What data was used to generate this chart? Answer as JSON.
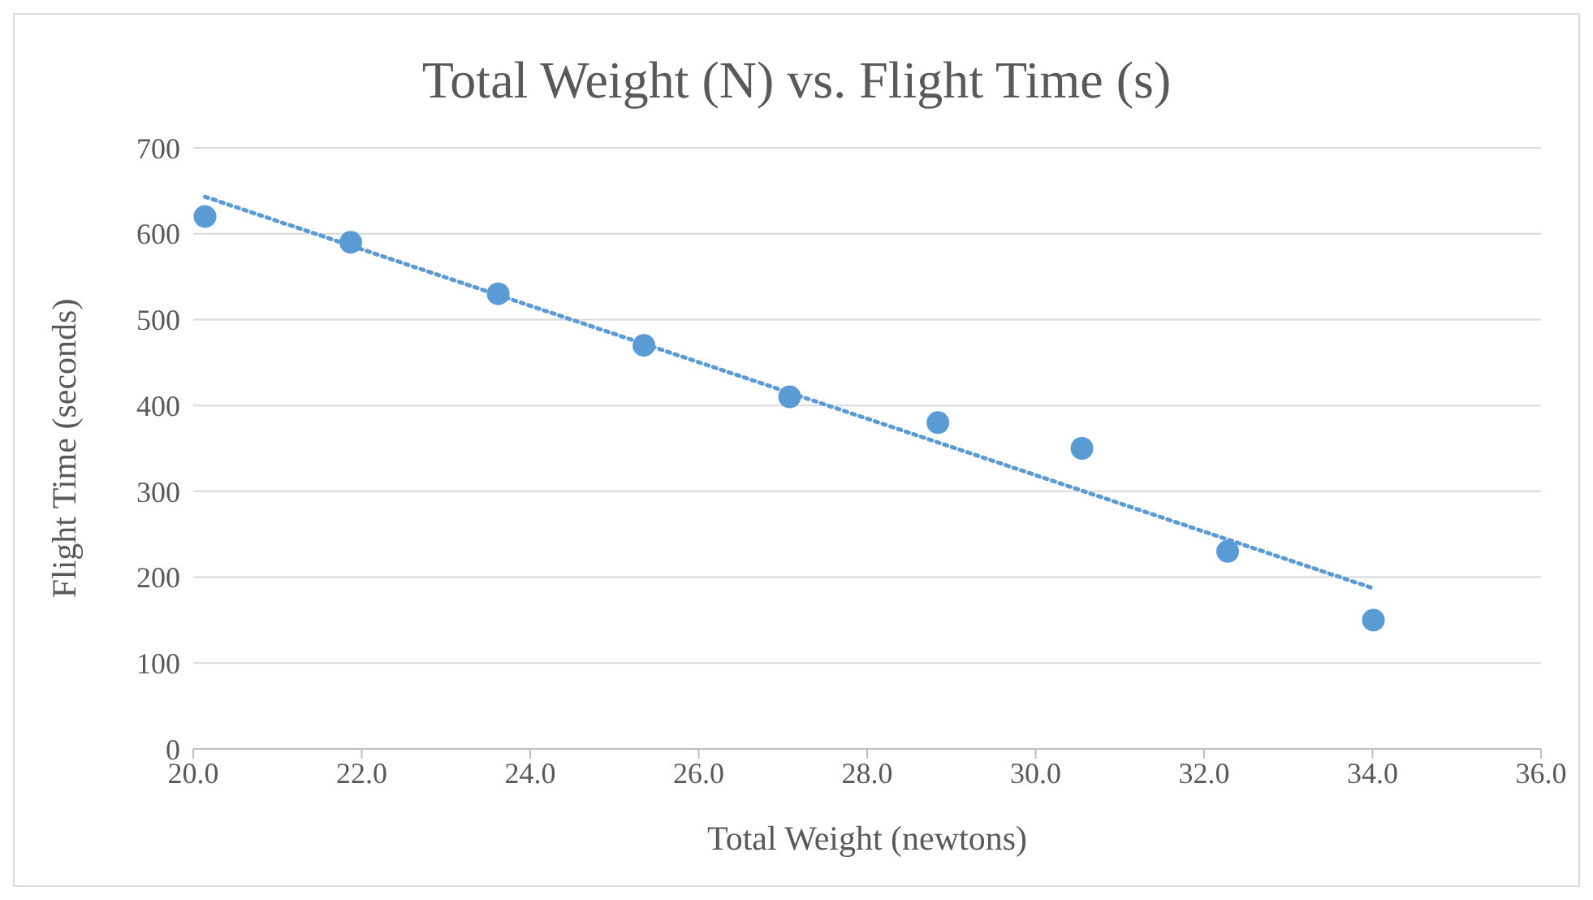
{
  "chart_data": {
    "type": "scatter",
    "title": "Total Weight (N) vs. Flight Time (s)",
    "xlabel": "Total Weight (newtons)",
    "ylabel": "Flight Time (seconds)",
    "x": [
      20.14,
      21.87,
      23.62,
      25.35,
      27.08,
      28.84,
      30.55,
      32.28,
      34.01
    ],
    "series": [
      {
        "color": "#5b9bd5",
        "marker": "circle",
        "values": [
          620,
          590,
          530,
          470,
          410,
          380,
          350,
          230,
          150
        ]
      },
      {
        "type": "line",
        "color": "#5b9bd5",
        "marker": "none",
        "line_style": "dotted",
        "x": [
          20.14,
          34.01
        ],
        "values": [
          643,
          187
        ]
      }
    ],
    "xlim": [
      20,
      36
    ],
    "xticks": [
      {
        "value": 20,
        "label": "20.0"
      },
      {
        "value": 22,
        "label": "22.0"
      },
      {
        "value": 24,
        "label": "24.0"
      },
      {
        "value": 26,
        "label": "26.0"
      },
      {
        "value": 28,
        "label": "28.0"
      },
      {
        "value": 30,
        "label": "30.0"
      },
      {
        "value": 32,
        "label": "32.0"
      },
      {
        "value": 34,
        "label": "34.0"
      },
      {
        "value": 36,
        "label": "36.0"
      }
    ],
    "ylim": [
      0,
      700
    ],
    "yticks": [
      0,
      100,
      200,
      300,
      400,
      500,
      600,
      700
    ],
    "grid": "y"
  }
}
